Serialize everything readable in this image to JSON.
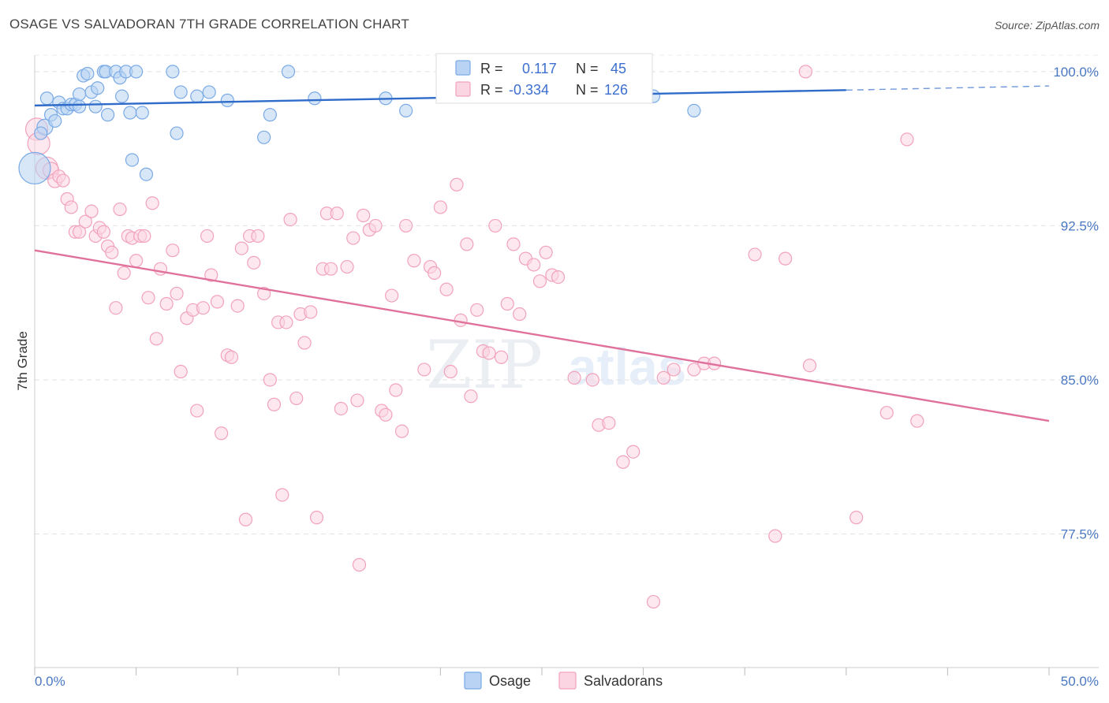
{
  "title": "OSAGE VS SALVADORAN 7TH GRADE CORRELATION CHART",
  "source": "Source: ZipAtlas.com",
  "watermark": {
    "zip": "ZIP",
    "atlas": "atlas"
  },
  "chart_data": {
    "type": "scatter",
    "ylabel": "7th Grade",
    "xlim": [
      0,
      50
    ],
    "ylim": [
      71.0,
      100.8
    ],
    "y_ticks": [
      {
        "value": 100.0,
        "label": "100.0%"
      },
      {
        "value": 92.5,
        "label": "92.5%"
      },
      {
        "value": 85.0,
        "label": "85.0%"
      },
      {
        "value": 77.5,
        "label": "77.5%"
      }
    ],
    "x_tick_labels": [
      {
        "value": 0,
        "label": "0.0%"
      },
      {
        "value": 50,
        "label": "50.0%"
      }
    ],
    "grid": true,
    "legend_top": {
      "placement": "top-center",
      "rows": [
        {
          "series": "Osage",
          "r_label": "R =",
          "r_value": "0.117",
          "n_label": "N =",
          "n_value": "45"
        },
        {
          "series": "Salvadorans",
          "r_label": "R =",
          "r_value": "-0.334",
          "n_label": "N =",
          "n_value": "126"
        }
      ]
    },
    "series": [
      {
        "name": "Osage",
        "color": "#7aaae6",
        "fill": "#b8d3f3",
        "trend_color": "#2f6bc9",
        "trend": {
          "x0": 0,
          "y0": 98.35,
          "x1": 40,
          "y1": 99.1,
          "dash_to_x": 50,
          "dash_to_y": 99.3
        },
        "points": [
          [
            0.0,
            95.3,
            20
          ],
          [
            0.5,
            97.3,
            10
          ],
          [
            0.6,
            98.7,
            8
          ],
          [
            0.8,
            97.9,
            8
          ],
          [
            1.0,
            97.6,
            8
          ],
          [
            1.2,
            98.5,
            8
          ],
          [
            1.4,
            98.2,
            8
          ],
          [
            1.6,
            98.2,
            8
          ],
          [
            1.8,
            98.4,
            8
          ],
          [
            2.0,
            98.4,
            8
          ],
          [
            2.2,
            98.9,
            8
          ],
          [
            2.4,
            99.8,
            8
          ],
          [
            2.6,
            99.9,
            8
          ],
          [
            2.8,
            99.0,
            8
          ],
          [
            3.0,
            98.3,
            8
          ],
          [
            3.1,
            99.2,
            8
          ],
          [
            3.4,
            100.0,
            8
          ],
          [
            3.5,
            100.0,
            8
          ],
          [
            3.6,
            97.9,
            8
          ],
          [
            4.0,
            100.0,
            8
          ],
          [
            4.2,
            99.7,
            8
          ],
          [
            4.3,
            98.8,
            8
          ],
          [
            4.5,
            100.0,
            8
          ],
          [
            4.7,
            98.0,
            8
          ],
          [
            4.8,
            95.7,
            8
          ],
          [
            5.0,
            100.0,
            8
          ],
          [
            5.3,
            98.0,
            8
          ],
          [
            5.5,
            95.0,
            8
          ],
          [
            6.8,
            100.0,
            8
          ],
          [
            7.0,
            97.0,
            8
          ],
          [
            7.2,
            99.0,
            8
          ],
          [
            8.0,
            98.8,
            8
          ],
          [
            8.6,
            99.0,
            8
          ],
          [
            9.5,
            98.6,
            8
          ],
          [
            11.3,
            96.8,
            8
          ],
          [
            11.6,
            97.9,
            8
          ],
          [
            12.5,
            100.0,
            8
          ],
          [
            13.8,
            98.7,
            8
          ],
          [
            17.3,
            98.7,
            8
          ],
          [
            18.3,
            98.1,
            8
          ],
          [
            22.5,
            100.0,
            8
          ],
          [
            30.5,
            98.8,
            8
          ],
          [
            32.5,
            98.1,
            8
          ],
          [
            0.3,
            97.0,
            8
          ],
          [
            2.2,
            98.3,
            8
          ]
        ]
      },
      {
        "name": "Salvadorans",
        "color": "#f2a2bb",
        "fill": "#fbd5e1",
        "trend_color": "#e0719b",
        "trend": {
          "x0": 0,
          "y0": 91.3,
          "x1": 50,
          "y1": 83.0
        },
        "points": [
          [
            0.1,
            97.2,
            14
          ],
          [
            0.2,
            96.5,
            14
          ],
          [
            0.6,
            95.3,
            14
          ],
          [
            0.8,
            95.2,
            10
          ],
          [
            1.0,
            94.7,
            9
          ],
          [
            1.2,
            94.9,
            8
          ],
          [
            1.4,
            94.7,
            8
          ],
          [
            1.6,
            93.8,
            8
          ],
          [
            1.8,
            93.4,
            8
          ],
          [
            2.0,
            92.2,
            8
          ],
          [
            2.2,
            92.2,
            8
          ],
          [
            2.5,
            92.7,
            8
          ],
          [
            2.8,
            93.2,
            8
          ],
          [
            3.0,
            92.0,
            8
          ],
          [
            3.2,
            92.4,
            8
          ],
          [
            3.4,
            92.2,
            8
          ],
          [
            3.6,
            91.5,
            8
          ],
          [
            3.8,
            91.2,
            8
          ],
          [
            4.0,
            88.5,
            8
          ],
          [
            4.2,
            93.3,
            8
          ],
          [
            4.4,
            90.2,
            8
          ],
          [
            4.6,
            92.0,
            8
          ],
          [
            4.8,
            91.9,
            8
          ],
          [
            5.0,
            90.8,
            8
          ],
          [
            5.2,
            92.0,
            8
          ],
          [
            5.4,
            92.0,
            8
          ],
          [
            5.6,
            89.0,
            8
          ],
          [
            5.8,
            93.6,
            8
          ],
          [
            6.0,
            87.0,
            8
          ],
          [
            6.2,
            90.4,
            8
          ],
          [
            6.5,
            88.7,
            8
          ],
          [
            6.8,
            91.3,
            8
          ],
          [
            7.0,
            89.2,
            8
          ],
          [
            7.2,
            85.4,
            8
          ],
          [
            7.5,
            88.0,
            8
          ],
          [
            7.8,
            88.4,
            8
          ],
          [
            8.0,
            83.5,
            8
          ],
          [
            8.3,
            88.5,
            8
          ],
          [
            8.5,
            92.0,
            8
          ],
          [
            8.7,
            90.1,
            8
          ],
          [
            9.0,
            88.8,
            8
          ],
          [
            9.2,
            82.4,
            8
          ],
          [
            9.5,
            86.2,
            8
          ],
          [
            9.7,
            86.1,
            8
          ],
          [
            10.0,
            88.6,
            8
          ],
          [
            10.2,
            91.4,
            8
          ],
          [
            10.4,
            78.2,
            8
          ],
          [
            10.6,
            92.0,
            8
          ],
          [
            10.8,
            90.7,
            8
          ],
          [
            11.0,
            92.0,
            8
          ],
          [
            11.3,
            89.2,
            8
          ],
          [
            11.6,
            85.0,
            8
          ],
          [
            11.8,
            83.8,
            8
          ],
          [
            12.0,
            87.8,
            8
          ],
          [
            12.2,
            79.4,
            8
          ],
          [
            12.4,
            87.8,
            8
          ],
          [
            12.6,
            92.8,
            8
          ],
          [
            12.9,
            84.1,
            8
          ],
          [
            13.1,
            88.2,
            8
          ],
          [
            13.3,
            86.8,
            8
          ],
          [
            13.6,
            88.3,
            8
          ],
          [
            13.9,
            78.3,
            8
          ],
          [
            14.2,
            90.4,
            8
          ],
          [
            14.4,
            93.1,
            8
          ],
          [
            14.6,
            90.4,
            8
          ],
          [
            14.9,
            93.1,
            8
          ],
          [
            15.1,
            83.6,
            8
          ],
          [
            15.4,
            90.5,
            8
          ],
          [
            15.7,
            91.9,
            8
          ],
          [
            15.9,
            84.0,
            8
          ],
          [
            16.2,
            93.0,
            8
          ],
          [
            16.5,
            92.3,
            8
          ],
          [
            16.8,
            92.5,
            8
          ],
          [
            16.0,
            76.0,
            8
          ],
          [
            17.1,
            83.5,
            8
          ],
          [
            17.3,
            83.3,
            8
          ],
          [
            17.6,
            89.1,
            8
          ],
          [
            17.8,
            84.5,
            8
          ],
          [
            18.1,
            82.5,
            8
          ],
          [
            18.3,
            92.5,
            8
          ],
          [
            18.7,
            90.8,
            8
          ],
          [
            19.2,
            85.5,
            8
          ],
          [
            19.5,
            90.5,
            8
          ],
          [
            19.7,
            90.2,
            8
          ],
          [
            20.0,
            93.4,
            8
          ],
          [
            20.3,
            89.4,
            8
          ],
          [
            20.5,
            85.4,
            8
          ],
          [
            20.8,
            94.5,
            8
          ],
          [
            21.0,
            87.9,
            8
          ],
          [
            21.3,
            91.6,
            8
          ],
          [
            21.5,
            84.2,
            8
          ],
          [
            21.8,
            88.4,
            8
          ],
          [
            22.1,
            86.4,
            8
          ],
          [
            22.4,
            86.3,
            8
          ],
          [
            22.7,
            92.5,
            8
          ],
          [
            23.0,
            86.1,
            8
          ],
          [
            23.3,
            88.7,
            8
          ],
          [
            23.6,
            91.6,
            8
          ],
          [
            23.9,
            88.2,
            8
          ],
          [
            24.2,
            90.9,
            8
          ],
          [
            24.6,
            90.6,
            8
          ],
          [
            24.9,
            89.8,
            8
          ],
          [
            25.2,
            91.2,
            8
          ],
          [
            25.5,
            90.1,
            8
          ],
          [
            25.8,
            90.0,
            8
          ],
          [
            26.6,
            85.1,
            8
          ],
          [
            27.5,
            85.0,
            8
          ],
          [
            27.8,
            82.8,
            8
          ],
          [
            28.3,
            82.9,
            8
          ],
          [
            29.0,
            81.0,
            8
          ],
          [
            29.5,
            81.5,
            8
          ],
          [
            31.0,
            85.1,
            8
          ],
          [
            30.5,
            74.2,
            8
          ],
          [
            31.5,
            85.5,
            8
          ],
          [
            32.5,
            85.5,
            8
          ],
          [
            33.0,
            85.8,
            8
          ],
          [
            33.5,
            85.8,
            8
          ],
          [
            36.5,
            77.4,
            8
          ],
          [
            37.0,
            90.9,
            8
          ],
          [
            38.2,
            85.7,
            8
          ],
          [
            40.5,
            78.3,
            8
          ],
          [
            42.0,
            83.4,
            8
          ],
          [
            43.5,
            83.0,
            8
          ],
          [
            38.0,
            100.0,
            8
          ],
          [
            43.0,
            96.7,
            8
          ],
          [
            35.5,
            91.1,
            8
          ]
        ]
      }
    ]
  }
}
